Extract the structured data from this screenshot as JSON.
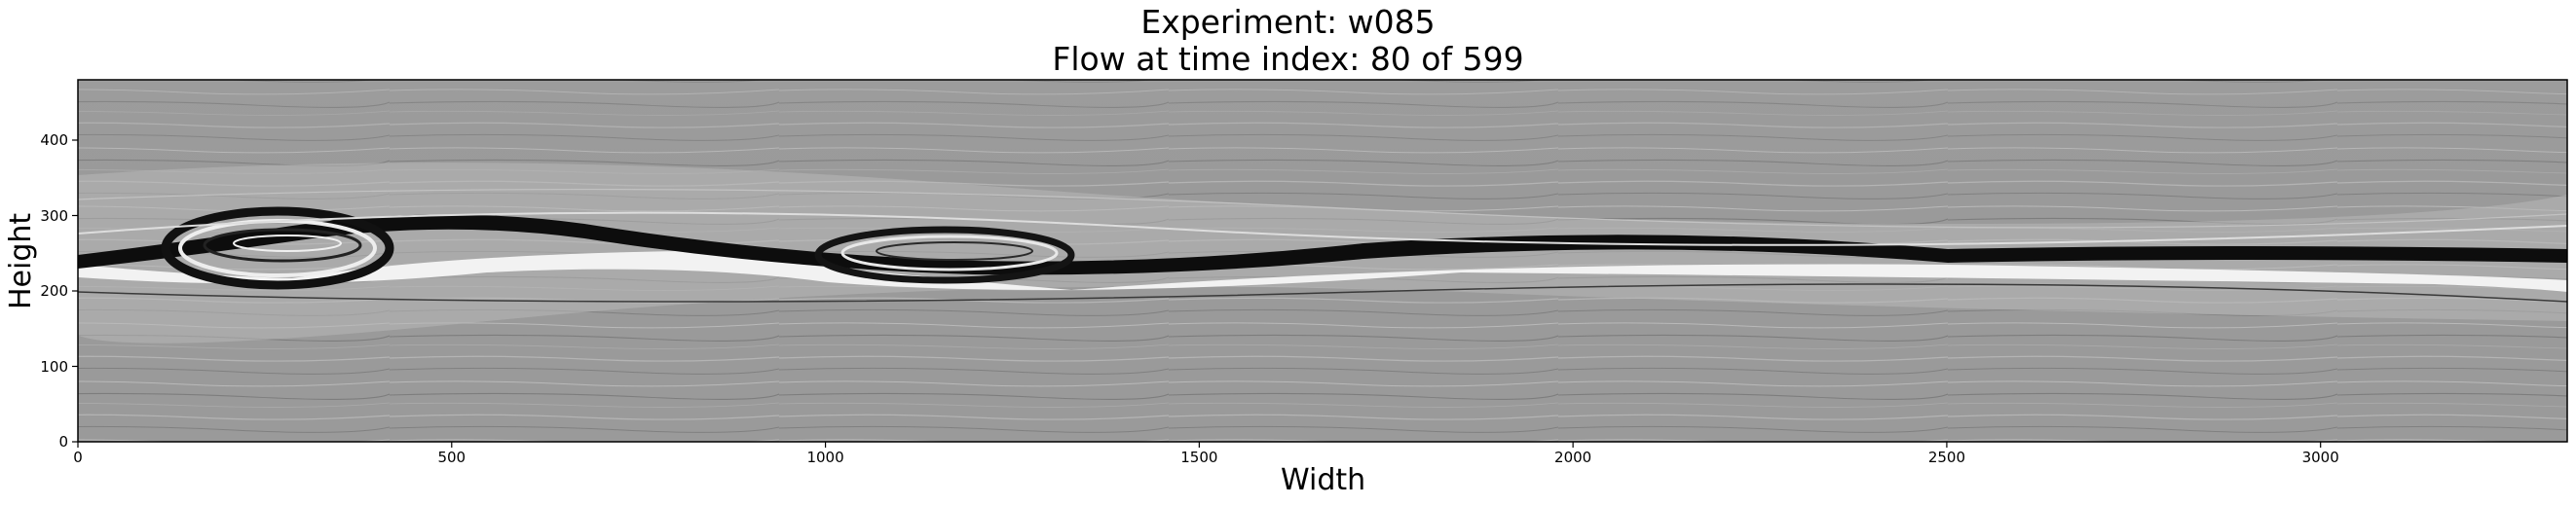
{
  "figure": {
    "title_line1": "Experiment: w085",
    "title_line2": "Flow at time index: 80 of 599",
    "xlabel": "Width",
    "ylabel": "Height",
    "xlim": [
      0,
      3330
    ],
    "ylim": [
      0,
      480
    ],
    "x_ticks": [
      0,
      500,
      1000,
      1500,
      2000,
      2500,
      3000
    ],
    "y_ticks": [
      0,
      100,
      200,
      300,
      400
    ],
    "colormap": "grayscale",
    "colors": {
      "background_gray": "#9a9a9a",
      "dark_band": "#0d0d0d",
      "light_band": "#f2f2f2"
    }
  }
}
